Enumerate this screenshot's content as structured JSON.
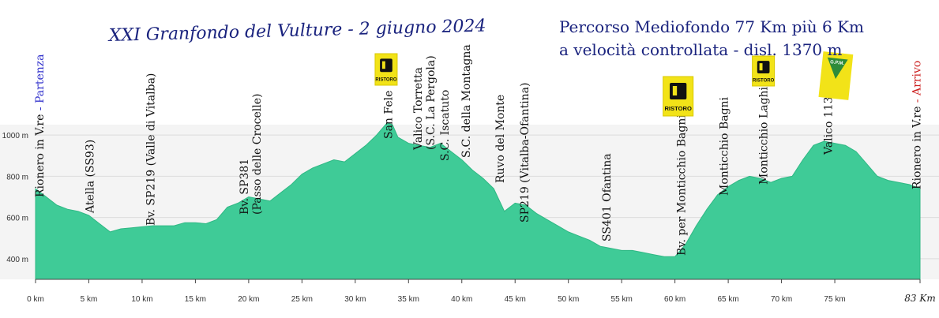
{
  "chart_data": {
    "type": "area",
    "title": "XXI Granfondo del Vulture - 2 giugno 2024",
    "subtitle_lines": [
      "Percorso Mediofondo 77 Km più 6 Km",
      "a velocità controllata - disl. 1370 m"
    ],
    "xlabel": "",
    "ylabel": "",
    "xlim": [
      0,
      83
    ],
    "ylim": [
      300,
      1150
    ],
    "x_ticks": [
      0,
      5,
      10,
      15,
      20,
      25,
      30,
      35,
      40,
      45,
      50,
      55,
      60,
      65,
      70,
      75
    ],
    "x_tick_labels": [
      "0 km",
      "5 km",
      "10 km",
      "15 km",
      "20 km",
      "25 km",
      "30 km",
      "35 km",
      "40 km",
      "45 km",
      "50 km",
      "55 km",
      "60 km",
      "65 km",
      "70 km",
      "75 km"
    ],
    "x_end_label": "83 Km",
    "y_ticks": [
      400,
      600,
      800,
      1000
    ],
    "y_tick_labels": [
      "400 m",
      "600 m",
      "800 m",
      "1000 m"
    ],
    "grid": true,
    "fill_color": "#3fcb97",
    "series": [
      {
        "x": [
          0,
          1,
          2,
          3,
          4,
          5,
          6,
          7,
          8,
          9,
          10,
          11,
          12,
          13,
          14,
          15,
          16,
          17,
          18,
          19,
          20,
          21,
          22,
          23,
          24,
          25,
          26,
          27,
          28,
          29,
          30,
          31,
          32,
          33,
          33.5,
          34,
          35,
          36,
          37,
          38,
          39,
          40,
          41,
          42,
          43,
          44,
          45,
          46,
          47,
          48,
          49,
          50,
          51,
          52,
          53,
          54,
          55,
          56,
          57,
          58,
          59,
          60,
          61,
          62,
          63,
          64,
          65,
          66,
          67,
          68,
          69,
          70,
          71,
          72,
          73,
          74,
          75,
          76,
          77,
          78,
          79,
          80,
          81,
          82,
          83
        ],
        "y": [
          740,
          700,
          660,
          640,
          630,
          610,
          570,
          530,
          545,
          550,
          555,
          560,
          560,
          560,
          575,
          575,
          570,
          590,
          650,
          670,
          700,
          690,
          680,
          720,
          760,
          810,
          840,
          860,
          880,
          870,
          910,
          950,
          1000,
          1060,
          1050,
          990,
          960,
          950,
          940,
          960,
          920,
          880,
          830,
          790,
          740,
          630,
          670,
          660,
          620,
          590,
          560,
          530,
          510,
          490,
          460,
          450,
          440,
          440,
          430,
          420,
          410,
          410,
          470,
          560,
          640,
          710,
          750,
          780,
          800,
          790,
          770,
          790,
          800,
          880,
          950,
          970,
          960,
          950,
          920,
          860,
          800,
          780,
          770,
          760,
          740
        ]
      }
    ],
    "annotations": [
      {
        "x": 0.3,
        "text": "Rionero in V.re",
        "suffix": " - Partenza",
        "suffix_color": "#3333cc"
      },
      {
        "x": 5,
        "text": "Atella (SS93)"
      },
      {
        "x": 10.7,
        "text": "Bv. SP219 (Valle di Vitalba)"
      },
      {
        "x": 19.5,
        "text": "Bv. SP381",
        "second_line": "(Passo delle Crocelle)"
      },
      {
        "x": 33,
        "text": "San Fele"
      },
      {
        "x": 35.8,
        "text": "Valico Torretta",
        "second_line": "(S.C. La Pergola)"
      },
      {
        "x": 38.3,
        "text": "S.C. Iscatuto"
      },
      {
        "x": 40.3,
        "text": "S.C. della Montagna"
      },
      {
        "x": 43.5,
        "text": "Ruvo del Monte"
      },
      {
        "x": 45.8,
        "text": "SP219 (Vitalba-Ofantina)"
      },
      {
        "x": 53.5,
        "text": "SS401 Ofantina"
      },
      {
        "x": 60.5,
        "text": "Bv. per Monticchio Bagni"
      },
      {
        "x": 64.5,
        "text": "Monticchio Bagni"
      },
      {
        "x": 68.2,
        "text": "Monticchio Laghi"
      },
      {
        "x": 74.3,
        "text": "Valico 113"
      },
      {
        "x": 82.6,
        "text": "Rionero in V.re",
        "suffix": " - Arrivo",
        "suffix_color": "#cc2222"
      }
    ],
    "ristoro_label": "RISTORO",
    "gpm_label": "G.P.M."
  }
}
